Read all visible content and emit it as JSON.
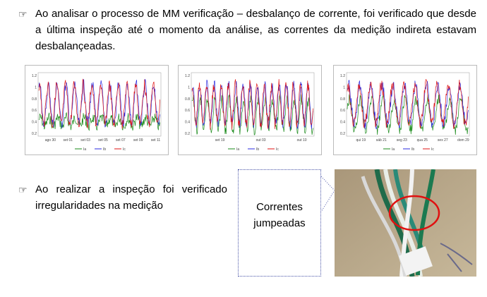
{
  "bullet_symbol": "☞",
  "bullets": [
    "Ao analisar o processo de MM verificação – desbalanço de corrente, foi verificado que desde a última inspeção até o momento da análise, as correntes da medição indireta estavam desbalançeadas.",
    "Ao realizar a inspeção foi verificado irregularidades na medição"
  ],
  "charts": [
    {
      "yticks": [
        "1.2",
        "1",
        "0.8",
        "0.6",
        "0.4",
        "0.2"
      ],
      "xticks": [
        "ago 30",
        "set 01",
        "set 03",
        "set 05",
        "set 07",
        "set 09",
        "set 11"
      ],
      "legend": [
        "Ia",
        "Ib",
        "Ic"
      ]
    },
    {
      "yticks": [
        "1.2",
        "1",
        "0.8",
        "0.6",
        "0.4",
        "0.2"
      ],
      "xticks": [
        "set 19",
        "out 03",
        "out 10"
      ],
      "legend": [
        "Ia",
        "Ib",
        "Ic"
      ]
    },
    {
      "yticks": [
        "1.2",
        "1",
        "0.8",
        "0.6",
        "0.4",
        "0.2"
      ],
      "xticks": [
        "qui 19",
        "sáb 21",
        "seg 23",
        "qua 25",
        "sex 27",
        "dom 29"
      ],
      "legend": [
        "Ia",
        "Ib",
        "Ic"
      ]
    }
  ],
  "callout": [
    "Correntes",
    "jumpeadas"
  ]
}
